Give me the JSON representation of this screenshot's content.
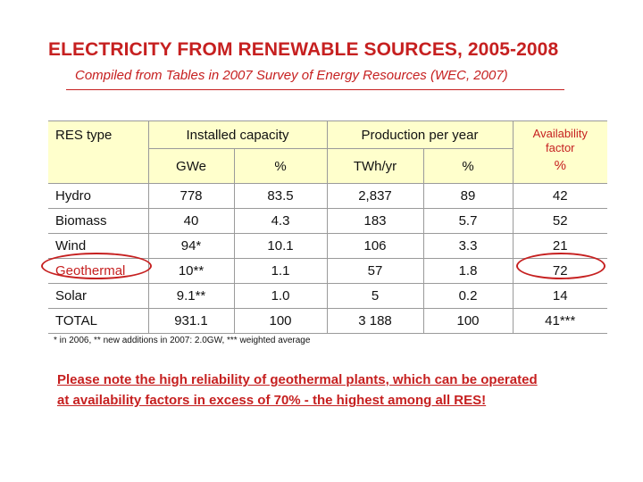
{
  "title": "ELECTRICITY FROM RENEWABLE SOURCES, 2005-2008",
  "subtitle": "Compiled from Tables in 2007 Survey of Energy Resources (WEC, 2007)",
  "table": {
    "headers": {
      "res_type": "RES type",
      "installed_capacity": "Installed capacity",
      "production_per_year": "Production per year",
      "availability_line1": "Availability",
      "availability_line2": "factor",
      "availability_unit": "%",
      "gwe": "GWe",
      "cap_pct": "%",
      "twh_yr": "TWh/yr",
      "prod_pct": "%"
    },
    "rows": [
      {
        "name": "Hydro",
        "gwe": "778",
        "cap_pct": "83.5",
        "twh": "2,837",
        "prod_pct": "89",
        "avail": "42"
      },
      {
        "name": "Biomass",
        "gwe": "40",
        "cap_pct": "4.3",
        "twh": "183",
        "prod_pct": "5.7",
        "avail": "52"
      },
      {
        "name": "Wind",
        "gwe": "94*",
        "cap_pct": "10.1",
        "twh": "106",
        "prod_pct": "3.3",
        "avail": "21"
      },
      {
        "name": "Geothermal",
        "gwe": "10**",
        "cap_pct": "1.1",
        "twh": "57",
        "prod_pct": "1.8",
        "avail": "72"
      },
      {
        "name": "Solar",
        "gwe": "9.1**",
        "cap_pct": "1.0",
        "twh": "5",
        "prod_pct": "0.2",
        "avail": "14"
      },
      {
        "name": "TOTAL",
        "gwe": "931.1",
        "cap_pct": "100",
        "twh": "3 188",
        "prod_pct": "100",
        "avail": "41***"
      }
    ]
  },
  "footnote": "* in 2006, ** new additions in 2007: 2.0GW, *** weighted average",
  "note_line1": "Please note the high reliability of geothermal plants, which can be operated",
  "note_line2": "at availability factors in excess of 70% - the highest among all RES!",
  "colors": {
    "accent": "#c62020",
    "header_bg": "#ffffcc"
  }
}
